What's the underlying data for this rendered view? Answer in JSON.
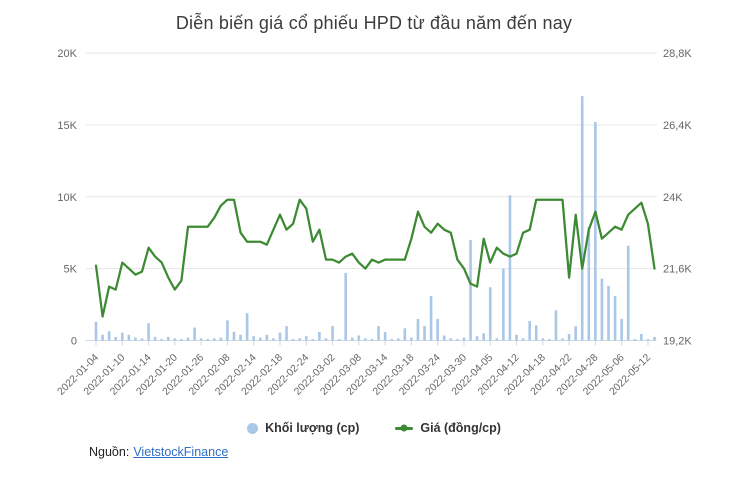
{
  "title": "Diễn biến giá cổ phiếu HPD từ đầu năm đến nay",
  "legend": {
    "volume": {
      "label": "Khối lượng (cp)"
    },
    "price": {
      "label": "Giá (đồng/cp)"
    }
  },
  "source": {
    "prefix": "Nguồn:",
    "link_text": "VietstockFinance"
  },
  "colors": {
    "volume_bar": "#a9c7e7",
    "price_line": "#3c8a32",
    "grid": "#e6e6e6",
    "axis_line": "#cfd8e3",
    "axis_text": "#666666",
    "title_text": "#3d3d3d",
    "legend_text": "#333333",
    "link": "#2f6fc2"
  },
  "chart_data": {
    "type": "combo",
    "title": "Diễn biến giá cổ phiếu HPD từ đầu năm đến nay",
    "grid": true,
    "legend_position": "bottom",
    "x": [
      "2022-01-04",
      "2022-01-05",
      "2022-01-06",
      "2022-01-07",
      "2022-01-10",
      "2022-01-11",
      "2022-01-12",
      "2022-01-13",
      "2022-01-14",
      "2022-01-17",
      "2022-01-18",
      "2022-01-19",
      "2022-01-20",
      "2022-01-21",
      "2022-01-24",
      "2022-01-25",
      "2022-01-26",
      "2022-01-27",
      "2022-01-28",
      "2022-02-07",
      "2022-02-08",
      "2022-02-09",
      "2022-02-10",
      "2022-02-11",
      "2022-02-14",
      "2022-02-15",
      "2022-02-16",
      "2022-02-17",
      "2022-02-18",
      "2022-02-21",
      "2022-02-22",
      "2022-02-23",
      "2022-02-24",
      "2022-02-25",
      "2022-02-28",
      "2022-03-01",
      "2022-03-02",
      "2022-03-03",
      "2022-03-04",
      "2022-03-07",
      "2022-03-08",
      "2022-03-09",
      "2022-03-10",
      "2022-03-11",
      "2022-03-14",
      "2022-03-15",
      "2022-03-16",
      "2022-03-17",
      "2022-03-18",
      "2022-03-21",
      "2022-03-22",
      "2022-03-23",
      "2022-03-24",
      "2022-03-25",
      "2022-03-28",
      "2022-03-29",
      "2022-03-30",
      "2022-03-31",
      "2022-04-01",
      "2022-04-04",
      "2022-04-05",
      "2022-04-06",
      "2022-04-07",
      "2022-04-08",
      "2022-04-12",
      "2022-04-13",
      "2022-04-14",
      "2022-04-15",
      "2022-04-18",
      "2022-04-19",
      "2022-04-20",
      "2022-04-21",
      "2022-04-22",
      "2022-04-25",
      "2022-04-26",
      "2022-04-27",
      "2022-04-28",
      "2022-04-29",
      "2022-05-04",
      "2022-05-05",
      "2022-05-06",
      "2022-05-09",
      "2022-05-10",
      "2022-05-11",
      "2022-05-12",
      "2022-05-13"
    ],
    "x_tick_labels": [
      "2022-01-04",
      "2022-01-10",
      "2022-01-14",
      "2022-01-20",
      "2022-01-26",
      "2022-02-08",
      "2022-02-14",
      "2022-02-18",
      "2022-02-24",
      "2022-03-02",
      "2022-03-08",
      "2022-03-14",
      "2022-03-18",
      "2022-03-24",
      "2022-03-30",
      "2022-04-05",
      "2022-04-12",
      "2022-04-18",
      "2022-04-22",
      "2022-04-28",
      "2022-05-06",
      "2022-05-12"
    ],
    "series": [
      {
        "name": "Khối lượng (cp)",
        "type": "bar",
        "axis": "left",
        "values": [
          1300,
          400,
          650,
          250,
          550,
          400,
          200,
          150,
          1200,
          250,
          100,
          250,
          150,
          100,
          200,
          900,
          150,
          100,
          150,
          200,
          1400,
          600,
          400,
          1900,
          300,
          200,
          400,
          150,
          550,
          1000,
          100,
          150,
          300,
          100,
          600,
          150,
          1000,
          100,
          4700,
          200,
          350,
          150,
          100,
          1000,
          600,
          100,
          150,
          850,
          200,
          1500,
          1000,
          3100,
          1500,
          350,
          150,
          100,
          200,
          7000,
          300,
          500,
          3700,
          150,
          5000,
          10100,
          400,
          150,
          1350,
          1050,
          150,
          100,
          2100,
          150,
          450,
          1000,
          17000,
          7900,
          15200,
          4300,
          3800,
          3100,
          1500,
          6600,
          100,
          450,
          100,
          250
        ]
      },
      {
        "name": "Giá (đồng/cp)",
        "type": "line",
        "axis": "right",
        "values": [
          21700,
          20000,
          21000,
          20900,
          21800,
          21600,
          21400,
          21500,
          22300,
          22000,
          21800,
          21300,
          20900,
          21200,
          23000,
          23000,
          23000,
          23000,
          23300,
          23700,
          23900,
          23900,
          22800,
          22500,
          22500,
          22500,
          22400,
          22900,
          23400,
          22900,
          23100,
          23900,
          23600,
          22500,
          22900,
          21900,
          21900,
          21800,
          22000,
          22100,
          21800,
          21600,
          21900,
          21800,
          21900,
          21900,
          21900,
          21900,
          22600,
          23500,
          23000,
          22800,
          23100,
          22900,
          22800,
          21900,
          21600,
          21100,
          21000,
          22600,
          21800,
          22300,
          22100,
          22000,
          22100,
          22800,
          22900,
          23900,
          23900,
          23900,
          23900,
          23900,
          21300,
          23400,
          21600,
          22900,
          23500,
          22600,
          22800,
          23000,
          22900,
          23400,
          23600,
          23800,
          23100,
          21600
        ]
      }
    ],
    "left_axis": {
      "min": 0,
      "max": 20000,
      "ticks": [
        0,
        5000,
        10000,
        15000,
        20000
      ],
      "tick_labels": [
        "0",
        "5K",
        "10K",
        "15K",
        "20K"
      ]
    },
    "right_axis": {
      "min": 19200,
      "max": 28800,
      "ticks": [
        19200,
        21600,
        24000,
        26400,
        28800
      ],
      "tick_labels": [
        "19,2K",
        "21,6K",
        "24K",
        "26,4K",
        "28,8K"
      ]
    }
  }
}
